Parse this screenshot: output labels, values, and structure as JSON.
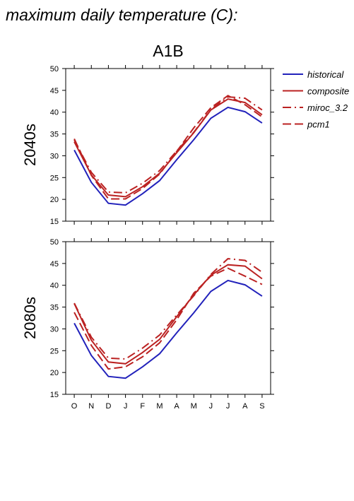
{
  "page": {
    "title": "maximum daily temperature (C):"
  },
  "chart_data": {
    "type": "line",
    "title": "A1B",
    "categories": [
      "O",
      "N",
      "D",
      "J",
      "F",
      "M",
      "A",
      "M",
      "J",
      "J",
      "A",
      "S"
    ],
    "ylim": [
      15,
      50
    ],
    "yticks": [
      15,
      20,
      25,
      30,
      35,
      40,
      45,
      50
    ],
    "grid": false,
    "legend_position": "top-right",
    "legend": [
      {
        "name": "historical",
        "color": "#2222bb",
        "dash": "solid"
      },
      {
        "name": "composite",
        "color": "#bb2222",
        "dash": "solid"
      },
      {
        "name": "miroc_3.2",
        "color": "#bb2222",
        "dash": "dashdot"
      },
      {
        "name": "pcm1",
        "color": "#bb2222",
        "dash": "dashed"
      }
    ],
    "panels": [
      {
        "label": "2040s",
        "series": [
          {
            "name": "historical",
            "values": [
              31.3,
              23.9,
              19.1,
              18.7,
              21.3,
              24.3,
              29.1,
              33.7,
              38.6,
              41.1,
              40.1,
              37.5
            ]
          },
          {
            "name": "composite",
            "values": [
              33.2,
              25.6,
              21.0,
              20.6,
              22.9,
              26.0,
              30.7,
              35.3,
              40.5,
              43.0,
              42.2,
              39.4
            ]
          },
          {
            "name": "miroc_3.2",
            "values": [
              33.6,
              26.2,
              21.7,
              21.5,
              23.7,
              26.6,
              31.1,
              35.4,
              40.6,
              43.5,
              43.2,
              40.5
            ]
          },
          {
            "name": "pcm1",
            "values": [
              33.9,
              25.5,
              20.1,
              20.1,
              22.5,
              25.8,
              31.0,
              36.4,
              41.0,
              43.8,
              41.7,
              38.9
            ]
          }
        ]
      },
      {
        "label": "2080s",
        "series": [
          {
            "name": "historical",
            "values": [
              31.3,
              23.9,
              19.1,
              18.7,
              21.3,
              24.3,
              29.1,
              33.7,
              38.6,
              41.1,
              40.1,
              37.5
            ]
          },
          {
            "name": "composite",
            "values": [
              35.8,
              27.4,
              22.4,
              22.0,
              24.6,
              27.6,
              32.8,
              37.8,
              42.3,
              44.7,
              44.4,
              41.5
            ]
          },
          {
            "name": "miroc_3.2",
            "values": [
              35.9,
              28.1,
              23.3,
              23.1,
              25.6,
              28.6,
              33.2,
              37.6,
              42.5,
              46.1,
              45.7,
              43.0
            ]
          },
          {
            "name": "pcm1",
            "values": [
              33.8,
              26.2,
              20.8,
              21.3,
              23.6,
              26.8,
              32.1,
              38.2,
              42.1,
              43.9,
              42.1,
              40.2
            ]
          }
        ]
      }
    ]
  }
}
